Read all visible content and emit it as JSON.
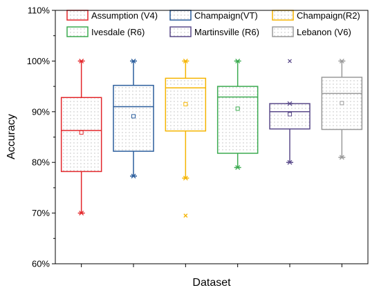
{
  "chart_data": {
    "type": "box",
    "xlabel": "Dataset",
    "ylabel": "Accuracy",
    "ylim": [
      60,
      110
    ],
    "yticks": [
      60,
      70,
      80,
      90,
      100,
      110
    ],
    "ytick_labels": [
      "60%",
      "70%",
      "80%",
      "90%",
      "100%",
      "110%"
    ],
    "grid": false,
    "legend_position": "top",
    "series": [
      {
        "name": "Assumption (V4)",
        "color": "#e3262a",
        "q1": 78.2,
        "median": 86.3,
        "q3": 92.8,
        "mean": 85.9,
        "whisker_low": 70,
        "whisker_high": 100,
        "outliers": []
      },
      {
        "name": "Champaign(VT)",
        "color": "#2a5d9c",
        "q1": 82.2,
        "median": 91.0,
        "q3": 95.2,
        "mean": 89.1,
        "whisker_low": 77.3,
        "whisker_high": 100,
        "outliers": []
      },
      {
        "name": "Champaign(R2)",
        "color": "#f5b400",
        "q1": 86.2,
        "median": 94.7,
        "q3": 96.6,
        "mean": 91.5,
        "whisker_low": 76.9,
        "whisker_high": 100,
        "outliers": [
          69.5
        ]
      },
      {
        "name": "Ivesdale (R6)",
        "color": "#3aaa4f",
        "q1": 81.8,
        "median": 92.9,
        "q3": 95.0,
        "mean": 90.6,
        "whisker_low": 79.0,
        "whisker_high": 100,
        "outliers": []
      },
      {
        "name": "Martinsville (R6)",
        "color": "#5a4a8a",
        "q1": 86.6,
        "median": 90.0,
        "q3": 91.6,
        "mean": 89.5,
        "whisker_low": 80.0,
        "whisker_high": 91.6,
        "outliers": [
          100
        ]
      },
      {
        "name": "Lebanon (V6)",
        "color": "#9a9a9a",
        "q1": 86.5,
        "median": 93.6,
        "q3": 96.8,
        "mean": 91.7,
        "whisker_low": 81.0,
        "whisker_high": 100,
        "outliers": []
      }
    ]
  }
}
